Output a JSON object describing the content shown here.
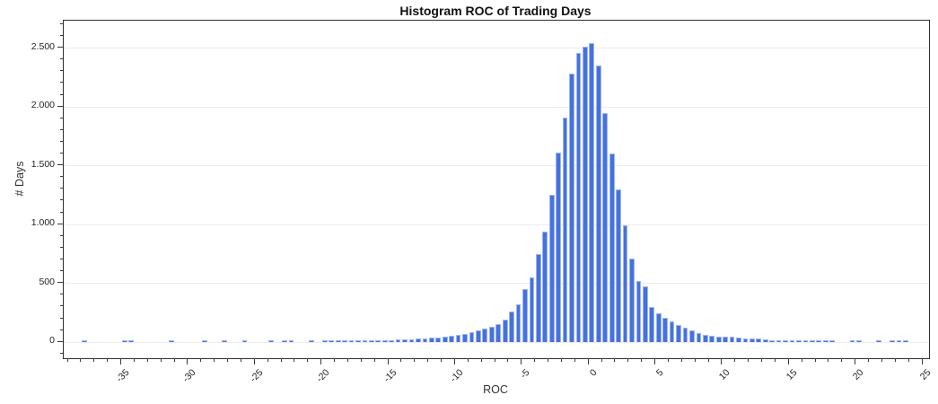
{
  "chart_data": {
    "type": "bar",
    "title": "Histogram ROC of Trading Days",
    "xlabel": "ROC",
    "ylabel": "# Days",
    "bin_width": 0.5,
    "x_axis_range": [
      -39.3,
      25.5
    ],
    "y_axis_range": [
      -140,
      2730
    ],
    "x_major_ticks": [
      -35,
      -30,
      -25,
      -20,
      -15,
      -10,
      -5,
      0,
      5,
      10,
      15,
      20,
      25
    ],
    "x_tick_labels": [
      "-35",
      "-30",
      "-25",
      "-20",
      "-15",
      "-10",
      "-5",
      "0",
      "5",
      "10",
      "15",
      "20",
      "25"
    ],
    "x_minor_tick_step": 1,
    "y_major_ticks": [
      0,
      500,
      1000,
      1500,
      2000,
      2500
    ],
    "y_tick_labels": [
      "0",
      "500",
      "1.000",
      "1.500",
      "2.000",
      "2.500"
    ],
    "y_minor_tick_step": 100,
    "grid": "horizontal-only",
    "legend": "none",
    "bar_color": "#4671de",
    "bar_edge_color": "#9db6f0",
    "grid_color": "#ececec",
    "axis_color": "#2f2f2f",
    "bins_center_count": [
      [
        -37.75,
        5
      ],
      [
        -34.75,
        6
      ],
      [
        -34.25,
        5
      ],
      [
        -31.25,
        6
      ],
      [
        -28.75,
        5
      ],
      [
        -27.25,
        5
      ],
      [
        -25.75,
        6
      ],
      [
        -23.75,
        6
      ],
      [
        -22.75,
        5
      ],
      [
        -22.25,
        6
      ],
      [
        -20.75,
        6
      ],
      [
        -19.75,
        5
      ],
      [
        -19.25,
        6
      ],
      [
        -18.75,
        6
      ],
      [
        -18.25,
        6
      ],
      [
        -17.75,
        8
      ],
      [
        -17.25,
        8
      ],
      [
        -16.75,
        10
      ],
      [
        -16.25,
        10
      ],
      [
        -15.75,
        12
      ],
      [
        -15.25,
        13
      ],
      [
        -14.75,
        15
      ],
      [
        -14.25,
        17
      ],
      [
        -13.75,
        20
      ],
      [
        -13.25,
        23
      ],
      [
        -12.75,
        25
      ],
      [
        -12.25,
        30
      ],
      [
        -11.75,
        33
      ],
      [
        -11.25,
        38
      ],
      [
        -10.75,
        46
      ],
      [
        -10.25,
        51
      ],
      [
        -9.75,
        58
      ],
      [
        -9.25,
        68
      ],
      [
        -8.75,
        81
      ],
      [
        -8.25,
        94
      ],
      [
        -7.75,
        110
      ],
      [
        -7.25,
        131
      ],
      [
        -6.75,
        152
      ],
      [
        -6.25,
        190
      ],
      [
        -5.75,
        261
      ],
      [
        -5.25,
        317
      ],
      [
        -4.75,
        449
      ],
      [
        -4.25,
        545
      ],
      [
        -3.75,
        743
      ],
      [
        -3.25,
        938
      ],
      [
        -2.75,
        1248
      ],
      [
        -2.25,
        1608
      ],
      [
        -1.75,
        1908
      ],
      [
        -1.25,
        2283
      ],
      [
        -0.75,
        2453
      ],
      [
        -0.25,
        2511
      ],
      [
        0.25,
        2542
      ],
      [
        0.75,
        2346
      ],
      [
        1.25,
        1946
      ],
      [
        1.75,
        1598
      ],
      [
        2.25,
        1294
      ],
      [
        2.75,
        989
      ],
      [
        3.25,
        710
      ],
      [
        3.75,
        520
      ],
      [
        4.25,
        469
      ],
      [
        4.75,
        292
      ],
      [
        5.25,
        240
      ],
      [
        5.75,
        203
      ],
      [
        6.25,
        172
      ],
      [
        6.75,
        145
      ],
      [
        7.25,
        118
      ],
      [
        7.75,
        94
      ],
      [
        8.25,
        76
      ],
      [
        8.75,
        61
      ],
      [
        9.25,
        50
      ],
      [
        9.75,
        46
      ],
      [
        10.25,
        40
      ],
      [
        10.75,
        46
      ],
      [
        11.25,
        33
      ],
      [
        11.75,
        30
      ],
      [
        12.25,
        25
      ],
      [
        12.75,
        25
      ],
      [
        13.25,
        20
      ],
      [
        13.75,
        15
      ],
      [
        14.25,
        12
      ],
      [
        14.75,
        10
      ],
      [
        15.25,
        8
      ],
      [
        15.75,
        8
      ],
      [
        16.25,
        6
      ],
      [
        16.75,
        6
      ],
      [
        17.25,
        8
      ],
      [
        17.75,
        6
      ],
      [
        18.25,
        6
      ],
      [
        19.75,
        5
      ],
      [
        20.25,
        5
      ],
      [
        21.75,
        5
      ],
      [
        22.75,
        5
      ],
      [
        23.25,
        5
      ],
      [
        23.75,
        5
      ]
    ]
  }
}
